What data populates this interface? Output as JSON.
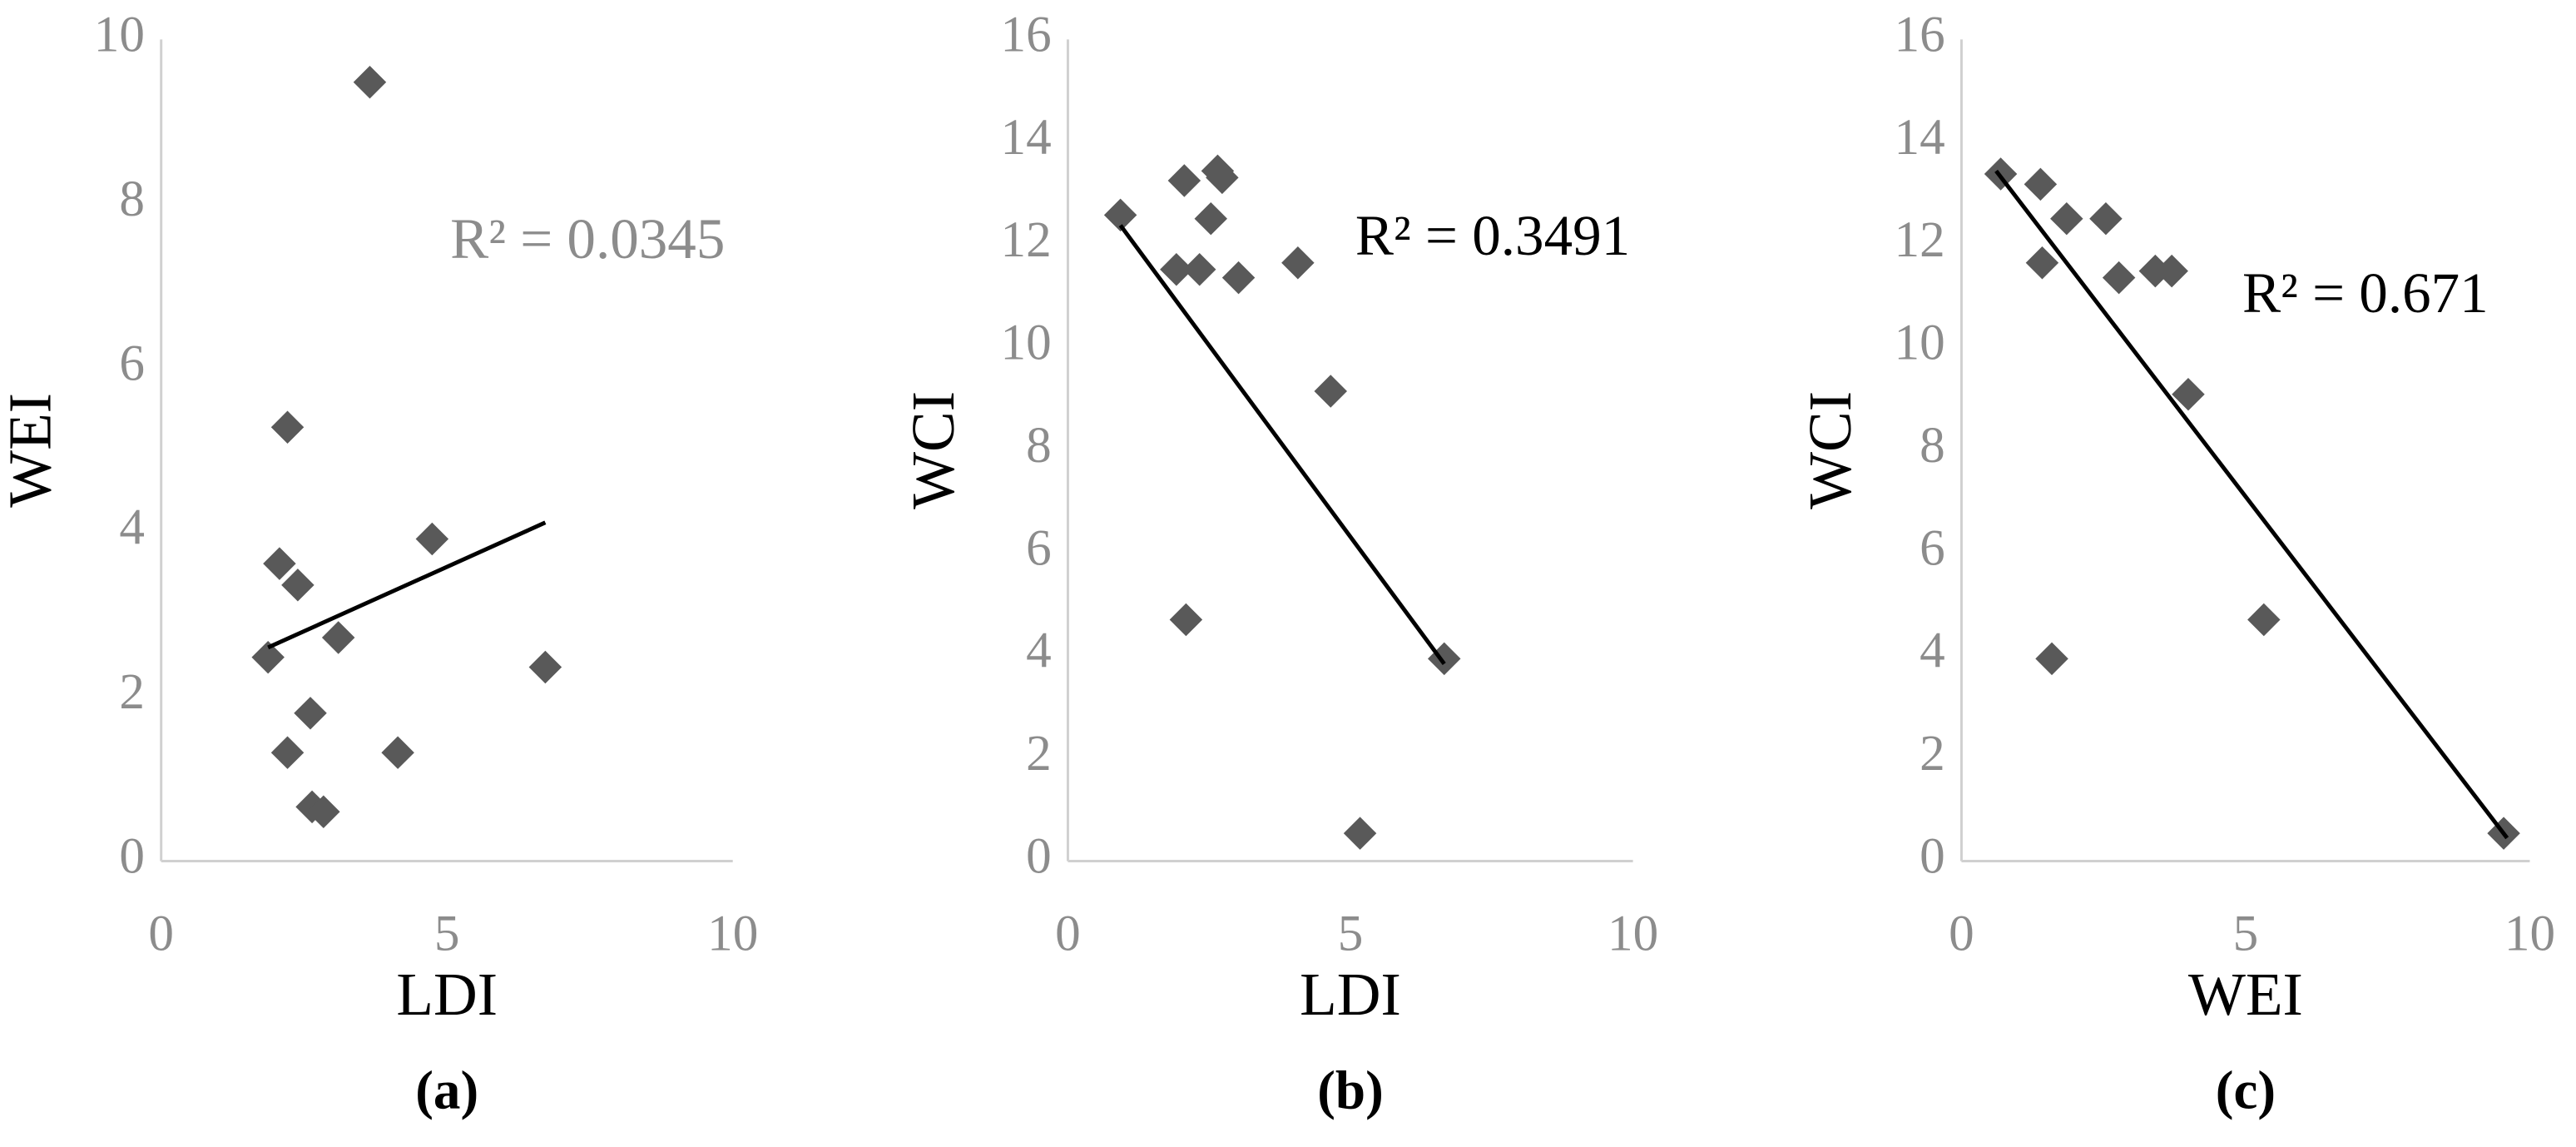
{
  "chart_data": [
    {
      "type": "scatter",
      "panel_label": "(a)",
      "x_label": "LDI",
      "y_label": "WEI",
      "annotation": "R² = 0.0345",
      "annotation_color": "#8c8c8c",
      "color": "#595959",
      "trendline_color": "#000000",
      "x": [
        3.65,
        2.21,
        2.07,
        2.39,
        4.74,
        1.87,
        3.1,
        2.61,
        2.21,
        4.14,
        2.64,
        2.84,
        6.72
      ],
      "values": [
        9.48,
        5.28,
        3.62,
        3.36,
        3.92,
        2.48,
        2.72,
        1.8,
        1.32,
        1.32,
        0.66,
        0.6,
        2.36
      ],
      "trendline": {
        "x": [
          1.87,
          6.72
        ],
        "y": [
          2.6,
          4.12
        ]
      },
      "xlim": [
        0,
        10
      ],
      "xticks": [
        0,
        5,
        10
      ],
      "ylim": [
        0,
        10
      ],
      "yticks": [
        0,
        2,
        4,
        6,
        8,
        10
      ]
    },
    {
      "type": "scatter",
      "panel_label": "(b)",
      "x_label": "LDI",
      "y_label": "WCI",
      "annotation": "R² = 0.3491",
      "annotation_color": "#000000",
      "color": "#595959",
      "trendline_color": "#000000",
      "x": [
        0.93,
        2.06,
        2.65,
        2.73,
        2.53,
        1.92,
        2.33,
        3.02,
        4.07,
        4.65,
        2.09,
        6.66,
        5.17
      ],
      "values": [
        12.58,
        13.25,
        13.44,
        13.31,
        12.51,
        11.52,
        11.52,
        11.36,
        11.65,
        9.15,
        4.7,
        3.94,
        0.54
      ],
      "trendline": {
        "x": [
          0.93,
          6.66
        ],
        "y": [
          12.38,
          3.84
        ]
      },
      "xlim": [
        0,
        10
      ],
      "xticks": [
        0,
        5,
        10
      ],
      "ylim": [
        0,
        16
      ],
      "yticks": [
        0,
        2,
        4,
        6,
        8,
        10,
        12,
        14,
        16
      ]
    },
    {
      "type": "scatter",
      "panel_label": "(c)",
      "x_label": "WEI",
      "y_label": "WCI",
      "annotation": "R² = 0.671",
      "annotation_color": "#000000",
      "color": "#595959",
      "trendline_color": "#000000",
      "x": [
        0.69,
        1.39,
        1.85,
        2.54,
        1.42,
        2.77,
        3.41,
        3.7,
        3.99,
        5.32,
        1.59,
        9.54
      ],
      "values": [
        13.38,
        13.18,
        12.51,
        12.51,
        11.65,
        11.36,
        11.49,
        11.49,
        9.09,
        4.7,
        3.94,
        0.54
      ],
      "trendline": {
        "x": [
          0.61,
          9.6
        ],
        "y": [
          13.44,
          0.45
        ]
      },
      "xlim": [
        0,
        10
      ],
      "xticks": [
        0,
        5,
        10
      ],
      "ylim": [
        0,
        16
      ],
      "yticks": [
        0,
        2,
        4,
        6,
        8,
        10,
        12,
        14,
        16
      ]
    }
  ]
}
